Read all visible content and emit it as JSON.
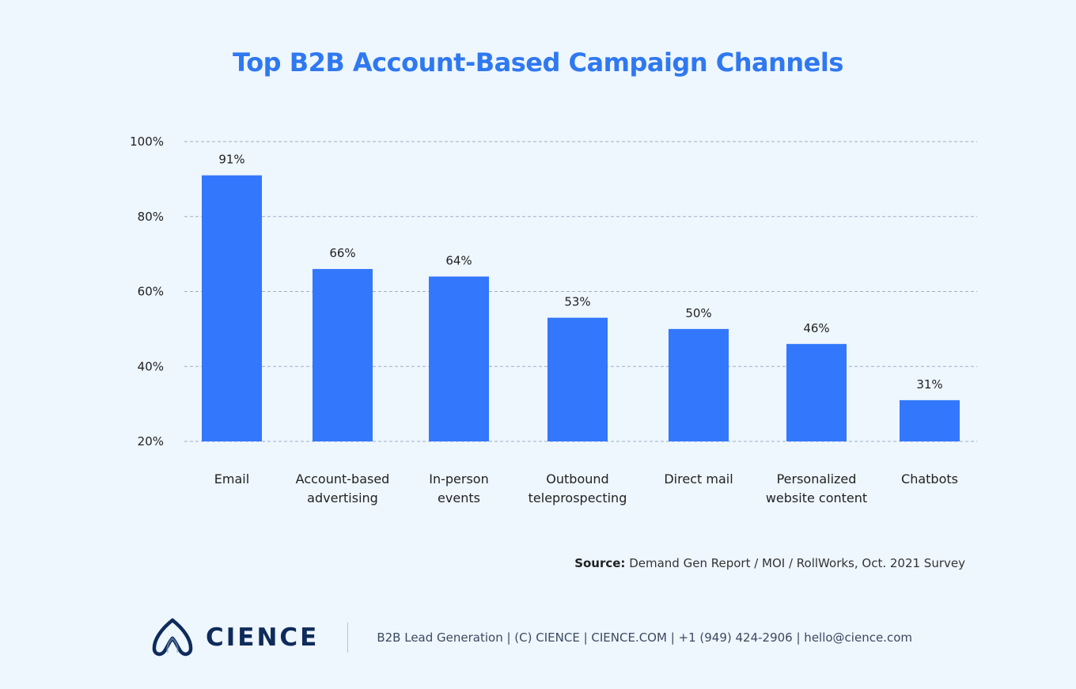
{
  "title": "Top B2B Account-Based Campaign Channels",
  "chart_data": {
    "type": "bar",
    "title": "Top B2B Account-Based Campaign Channels",
    "categories": [
      "Email",
      "Account-based\nadvertising",
      "In-person\nevents",
      "Outbound\nteleprospecting",
      "Direct mail",
      "Personalized\nwebsite content",
      "Chatbots"
    ],
    "values": [
      91,
      66,
      64,
      53,
      50,
      46,
      31
    ],
    "data_labels": [
      "91%",
      "66%",
      "64%",
      "53%",
      "50%",
      "46%",
      "31%"
    ],
    "ylim": [
      20,
      100
    ],
    "yticks": [
      100,
      80,
      60,
      40,
      20
    ],
    "ytick_labels": [
      "100%",
      "80%",
      "60%",
      "40%",
      "20%"
    ],
    "grid": true,
    "bar_color": "#3377fc",
    "xlabel": "",
    "ylabel": ""
  },
  "source": {
    "label": "Source:",
    "text": "Demand Gen Report / MOI / RollWorks, Oct. 2021 Survey"
  },
  "footer": {
    "brand": "CIENCE",
    "contact": "B2B Lead Generation | (C) CIENCE | CIENCE.COM | +1 (949) 424-2906 | hello@cience.com",
    "logo_icon": "cience-logo-icon"
  }
}
